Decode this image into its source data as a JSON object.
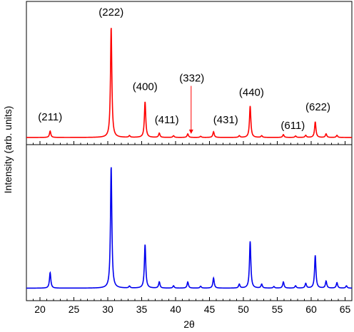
{
  "chart_data": {
    "type": "line",
    "xlabel": "2θ",
    "ylabel": "Intensity (arb. units)",
    "xlim": [
      18,
      66
    ],
    "x_ticks": [
      20,
      25,
      30,
      35,
      40,
      45,
      50,
      55,
      60,
      65
    ],
    "panels": [
      {
        "name": "top",
        "color": "#ff0000",
        "ylim": [
          0,
          1
        ],
        "baseline": 0.05,
        "peaks": [
          {
            "x": 21.5,
            "h": 0.045
          },
          {
            "x": 30.5,
            "h": 0.77
          },
          {
            "x": 33.2,
            "h": 0.012
          },
          {
            "x": 35.5,
            "h": 0.25
          },
          {
            "x": 37.6,
            "h": 0.03
          },
          {
            "x": 39.7,
            "h": 0.012
          },
          {
            "x": 41.8,
            "h": 0.025
          },
          {
            "x": 43.7,
            "h": 0.008
          },
          {
            "x": 45.6,
            "h": 0.04
          },
          {
            "x": 49.4,
            "h": 0.012
          },
          {
            "x": 51.0,
            "h": 0.22
          },
          {
            "x": 52.7,
            "h": 0.012
          },
          {
            "x": 55.9,
            "h": 0.02
          },
          {
            "x": 57.7,
            "h": 0.01
          },
          {
            "x": 59.2,
            "h": 0.015
          },
          {
            "x": 60.6,
            "h": 0.11
          },
          {
            "x": 62.2,
            "h": 0.025
          },
          {
            "x": 63.8,
            "h": 0.015
          }
        ],
        "annotations": [
          {
            "text": "(211)",
            "x": 21.5,
            "y": 0.17
          },
          {
            "text": "(222)",
            "x": 30.5,
            "y": 0.9
          },
          {
            "text": "(400)",
            "x": 35.5,
            "y": 0.38
          },
          {
            "text": "(411)",
            "x": 38.7,
            "y": 0.15
          },
          {
            "text": "(332)",
            "x": 42.4,
            "y": 0.44,
            "arrow_to_y": 0.075
          },
          {
            "text": "(431)",
            "x": 47.4,
            "y": 0.15
          },
          {
            "text": "(440)",
            "x": 51.2,
            "y": 0.34
          },
          {
            "text": "(611)",
            "x": 57.3,
            "y": 0.11
          },
          {
            "text": "(622)",
            "x": 61.0,
            "y": 0.24
          }
        ]
      },
      {
        "name": "bottom",
        "color": "#0000ee",
        "ylim": [
          0,
          1
        ],
        "baseline": 0.08,
        "peaks": [
          {
            "x": 21.5,
            "h": 0.1
          },
          {
            "x": 30.5,
            "h": 0.78
          },
          {
            "x": 33.2,
            "h": 0.012
          },
          {
            "x": 35.5,
            "h": 0.28
          },
          {
            "x": 37.6,
            "h": 0.04
          },
          {
            "x": 39.7,
            "h": 0.015
          },
          {
            "x": 41.8,
            "h": 0.04
          },
          {
            "x": 43.7,
            "h": 0.012
          },
          {
            "x": 45.6,
            "h": 0.065
          },
          {
            "x": 49.4,
            "h": 0.025
          },
          {
            "x": 51.0,
            "h": 0.3
          },
          {
            "x": 52.7,
            "h": 0.025
          },
          {
            "x": 54.5,
            "h": 0.01
          },
          {
            "x": 55.9,
            "h": 0.04
          },
          {
            "x": 57.7,
            "h": 0.015
          },
          {
            "x": 59.2,
            "h": 0.03
          },
          {
            "x": 60.6,
            "h": 0.21
          },
          {
            "x": 62.2,
            "h": 0.045
          },
          {
            "x": 63.8,
            "h": 0.035
          },
          {
            "x": 65.2,
            "h": 0.015
          }
        ]
      }
    ]
  }
}
